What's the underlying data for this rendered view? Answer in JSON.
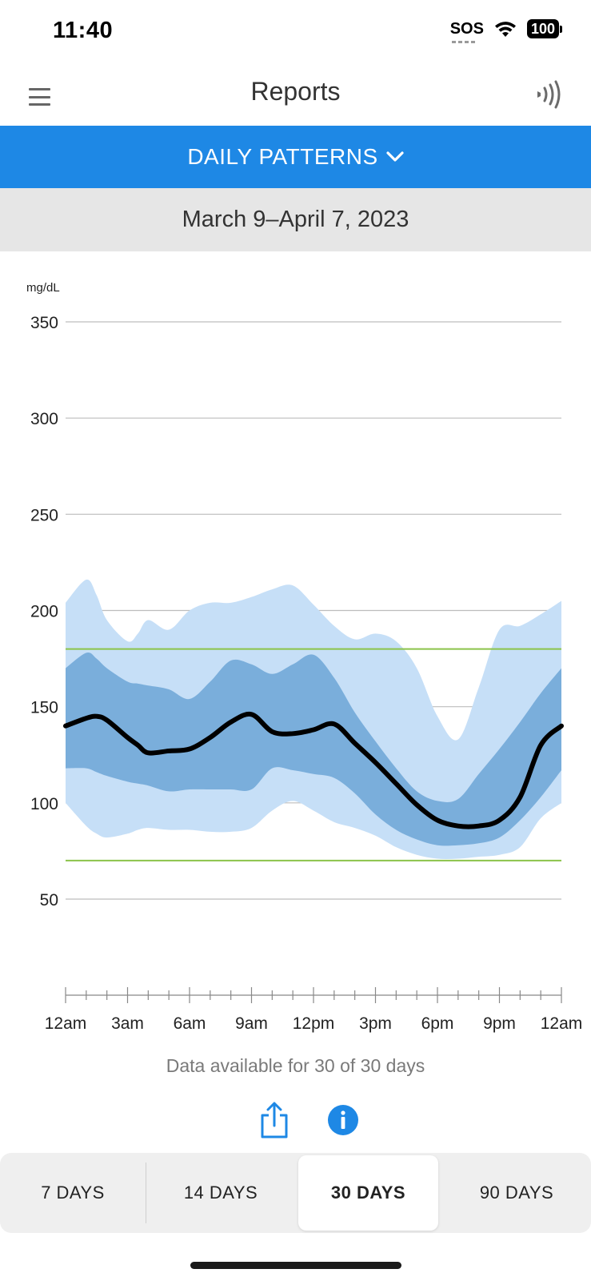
{
  "status_bar": {
    "time": "11:40",
    "sos": "SOS",
    "battery": "100"
  },
  "header": {
    "title": "Reports",
    "menu_icon": "hamburger-menu-icon",
    "sensor_icon": "nfc-scan-icon"
  },
  "report_selector": {
    "label": "DAILY PATTERNS",
    "icon": "chevron-down-icon"
  },
  "date_range": "March 9–April 7, 2023",
  "chart_data": {
    "type": "area",
    "ylabel": "mg/dL",
    "ylim": [
      0,
      350
    ],
    "yticks": [
      50,
      100,
      150,
      200,
      250,
      300,
      350
    ],
    "xticks": [
      "12am",
      "3am",
      "6am",
      "9am",
      "12pm",
      "3pm",
      "6pm",
      "9pm",
      "12am"
    ],
    "target_range": [
      70,
      180
    ],
    "grid": true,
    "x_hours": [
      0,
      1,
      1.5,
      2,
      3,
      3.5,
      4,
      5,
      6,
      7,
      8,
      9,
      10,
      11,
      12,
      13,
      14,
      15,
      16,
      17,
      18,
      19,
      20,
      21,
      22,
      23,
      24
    ],
    "series": [
      {
        "values": [
          204,
          216,
          208,
          195,
          184,
          188,
          195,
          190,
          200,
          204,
          204,
          207,
          211,
          213,
          203,
          192,
          185,
          188,
          184,
          170,
          145,
          133,
          160,
          190,
          192,
          198,
          205
        ]
      },
      {
        "values": [
          170,
          178,
          175,
          170,
          163,
          162,
          161,
          159,
          154,
          163,
          174,
          172,
          167,
          172,
          177,
          165,
          147,
          132,
          118,
          106,
          101,
          102,
          115,
          128,
          142,
          157,
          170
        ]
      },
      {
        "values": [
          140,
          144,
          145,
          143,
          134,
          130,
          126,
          127,
          128,
          134,
          142,
          146,
          137,
          136,
          138,
          141,
          131,
          121,
          110,
          99,
          91,
          88,
          88,
          91,
          103,
          130,
          140
        ]
      },
      {
        "values": [
          118,
          118,
          116,
          114,
          111,
          110,
          109,
          106,
          107,
          107,
          107,
          107,
          118,
          117,
          115,
          113,
          105,
          94,
          86,
          81,
          78,
          78,
          79,
          82,
          91,
          103,
          117
        ]
      },
      {
        "values": [
          100,
          88,
          84,
          82,
          84,
          86,
          87,
          86,
          86,
          85,
          85,
          87,
          96,
          101,
          96,
          90,
          87,
          83,
          77,
          73,
          71,
          71,
          72,
          73,
          77,
          92,
          100
        ]
      }
    ]
  },
  "data_available": "Data available for 30 of 30 days",
  "actions": {
    "share_icon": "share-icon",
    "info_icon": "info-icon"
  },
  "segments": [
    {
      "label": "7 DAYS",
      "selected": false
    },
    {
      "label": "14 DAYS",
      "selected": false
    },
    {
      "label": "30 DAYS",
      "selected": true
    },
    {
      "label": "90 DAYS",
      "selected": false
    }
  ],
  "colors": {
    "accent": "#1e88e5",
    "outer_band": "#c6dff7",
    "inner_band": "#7aaedb",
    "median": "#000000",
    "target": "#8bc34a",
    "grid": "#bdbdbd"
  }
}
